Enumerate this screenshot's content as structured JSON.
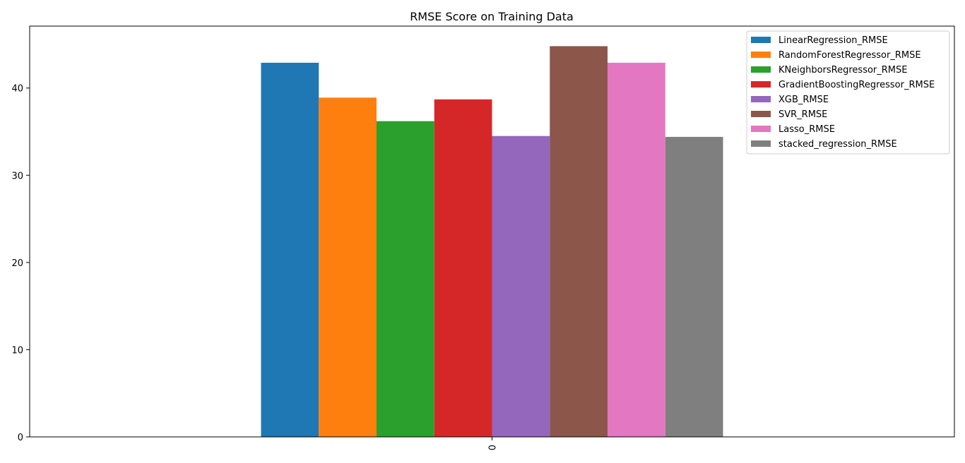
{
  "chart_data": {
    "type": "bar",
    "title": "RMSE Score on Training Data",
    "xlabel": "",
    "ylabel": "",
    "categories": [
      "0"
    ],
    "ylim": [
      0,
      47.1
    ],
    "yticks": [
      0,
      10,
      20,
      30,
      40
    ],
    "grid": false,
    "legend_position": "top-right",
    "series": [
      {
        "name": "LinearRegression_RMSE",
        "values": [
          42.9
        ],
        "color": "#1f77b4"
      },
      {
        "name": "RandomForestRegressor_RMSE",
        "values": [
          38.9
        ],
        "color": "#ff7f0e"
      },
      {
        "name": "KNeighborsRegressor_RMSE",
        "values": [
          36.2
        ],
        "color": "#2ca02c"
      },
      {
        "name": "GradientBoostingRegressor_RMSE",
        "values": [
          38.7
        ],
        "color": "#d62728"
      },
      {
        "name": "XGB_RMSE",
        "values": [
          34.5
        ],
        "color": "#9467bd"
      },
      {
        "name": "SVR_RMSE",
        "values": [
          44.8
        ],
        "color": "#8c564b"
      },
      {
        "name": "Lasso_RMSE",
        "values": [
          42.9
        ],
        "color": "#e377c2"
      },
      {
        "name": "stacked_regression_RMSE",
        "values": [
          34.4
        ],
        "color": "#7f7f7f"
      }
    ]
  }
}
